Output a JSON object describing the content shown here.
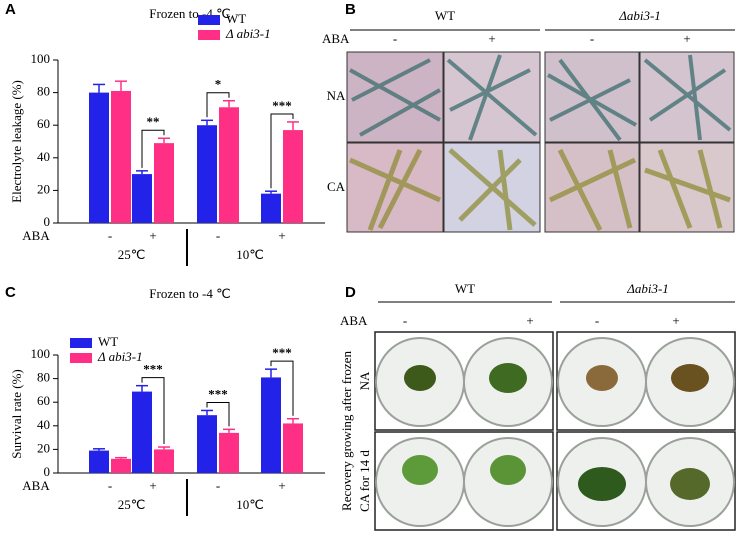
{
  "chart_data": [
    {
      "type": "bar",
      "label": "A",
      "title": "Frozen to -4 ℃",
      "y_label": "Electrolyte leakage (%)",
      "row_label": "ABA",
      "categories": [
        "-",
        "+",
        "-",
        "+"
      ],
      "groups": [
        "25℃",
        "10℃"
      ],
      "series": [
        {
          "name": "WT",
          "color": "#2222e8",
          "values": [
            80,
            30,
            60,
            18
          ],
          "errors": [
            5,
            2,
            3,
            1.5
          ]
        },
        {
          "name": "Δ abi3-1",
          "color": "#ff2f86",
          "values": [
            81,
            49,
            71,
            57
          ],
          "errors": [
            6,
            3,
            4,
            5
          ]
        }
      ],
      "significance": [
        null,
        "**",
        "*",
        "***"
      ],
      "ylim": [
        0,
        100
      ],
      "yticks": [
        0,
        20,
        40,
        60,
        80,
        100
      ],
      "legend": "upper right"
    },
    {
      "type": "bar",
      "label": "C",
      "title": "Frozen to -4 ℃",
      "y_label": "Survival rate (%)",
      "row_label": "ABA",
      "categories": [
        "-",
        "+",
        "-",
        "+"
      ],
      "groups": [
        "25℃",
        "10℃"
      ],
      "series": [
        {
          "name": "WT",
          "color": "#2222e8",
          "values": [
            19,
            69,
            49,
            81
          ],
          "errors": [
            1.5,
            5,
            4,
            7
          ]
        },
        {
          "name": "Δ abi3-1",
          "color": "#ff2f86",
          "values": [
            12,
            20,
            34,
            42
          ],
          "errors": [
            1,
            2,
            3,
            4
          ]
        }
      ],
      "significance": [
        null,
        "***",
        "***",
        "***"
      ],
      "ylim": [
        0,
        100
      ],
      "yticks": [
        0,
        20,
        40,
        60,
        80,
        100
      ],
      "legend": "upper left"
    }
  ],
  "panel_b": {
    "label": "B",
    "groups": [
      "WT",
      "Δabi3-1"
    ],
    "treatment_label": "ABA",
    "treatments": [
      "-",
      "+",
      "-",
      "+"
    ],
    "rows": [
      "NA",
      "CA"
    ]
  },
  "panel_d": {
    "label": "D",
    "groups": [
      "WT",
      "Δabi3-1"
    ],
    "treatment_label": "ABA",
    "treatments": [
      "-",
      "+",
      "-",
      "+"
    ],
    "rows": [
      "NA",
      "CA for 14 d"
    ],
    "y_label": "Recovery growing after frozen"
  }
}
